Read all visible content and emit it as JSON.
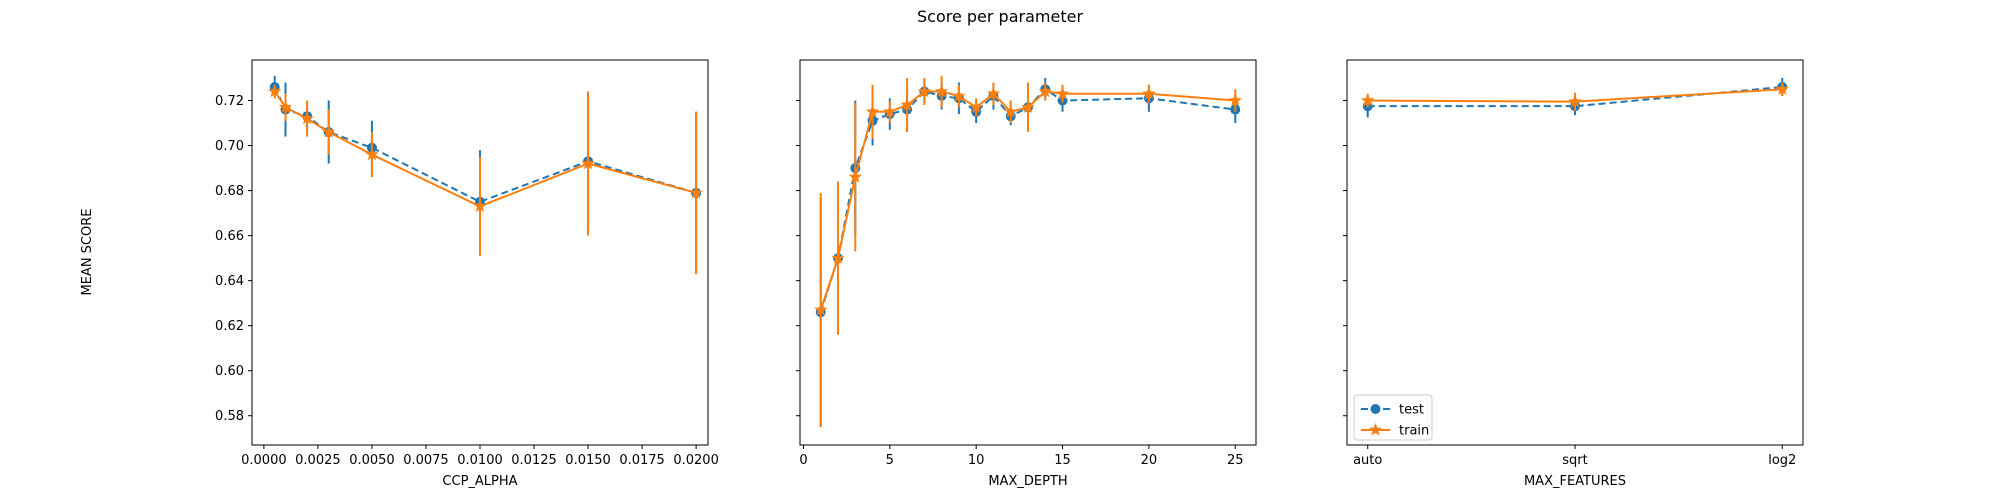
{
  "figure": {
    "title": "Score per parameter",
    "ylabel": "MEAN SCORE"
  },
  "colors": {
    "test": "#1f77b4",
    "train": "#ff7f0e",
    "axis": "#000000"
  },
  "legend": {
    "placement": "lower-left",
    "entries": [
      {
        "label": "test"
      },
      {
        "label": "train"
      }
    ]
  },
  "chart_data": [
    {
      "type": "line",
      "xlabel": "CCP_ALPHA",
      "xscale": "linear",
      "xlim": [
        -0.00055,
        0.02055
      ],
      "ylim": [
        0.567,
        0.738
      ],
      "xticks": [
        0.0,
        0.0025,
        0.005,
        0.0075,
        0.01,
        0.0125,
        0.015,
        0.0175,
        0.02
      ],
      "xtick_labels": [
        "0.0000",
        "0.0025",
        "0.0050",
        "0.0075",
        "0.0100",
        "0.0125",
        "0.0150",
        "0.0175",
        "0.0200"
      ],
      "yticks": [
        0.58,
        0.6,
        0.62,
        0.64,
        0.66,
        0.68,
        0.7,
        0.72
      ],
      "ytick_labels": [
        "0.58",
        "0.60",
        "0.62",
        "0.64",
        "0.66",
        "0.68",
        "0.70",
        "0.72"
      ],
      "x": [
        0.0005,
        0.001,
        0.002,
        0.003,
        0.005,
        0.01,
        0.015,
        0.02
      ],
      "series": [
        {
          "name": "test",
          "marker": "circle",
          "linestyle": "dashed",
          "values": [
            0.726,
            0.716,
            0.713,
            0.706,
            0.699,
            0.675,
            0.693,
            0.679
          ],
          "err": [
            0.005,
            0.012,
            0.006,
            0.014,
            0.012,
            0.023,
            0.031,
            0.036
          ]
        },
        {
          "name": "train",
          "marker": "star",
          "linestyle": "solid",
          "values": [
            0.724,
            0.717,
            0.712,
            0.706,
            0.696,
            0.673,
            0.692,
            0.679
          ],
          "err": [
            0.003,
            0.006,
            0.008,
            0.01,
            0.01,
            0.022,
            0.032,
            0.036
          ]
        }
      ]
    },
    {
      "type": "line",
      "xlabel": "MAX_DEPTH",
      "xscale": "linear",
      "xlim": [
        -0.2,
        26.2
      ],
      "ylim": [
        0.567,
        0.738
      ],
      "xticks": [
        0,
        5,
        10,
        15,
        20,
        25
      ],
      "xtick_labels": [
        "0",
        "5",
        "10",
        "15",
        "20",
        "25"
      ],
      "yticks": [
        0.58,
        0.6,
        0.62,
        0.64,
        0.66,
        0.68,
        0.7,
        0.72
      ],
      "ytick_labels": [
        "",
        "",
        "",
        "",
        "",
        "",
        "",
        ""
      ],
      "x": [
        1,
        2,
        3,
        4,
        5,
        6,
        7,
        8,
        9,
        10,
        11,
        12,
        13,
        14,
        15,
        20,
        25
      ],
      "series": [
        {
          "name": "test",
          "marker": "circle",
          "linestyle": "dashed",
          "values": [
            0.626,
            0.65,
            0.69,
            0.711,
            0.714,
            0.716,
            0.724,
            0.722,
            0.721,
            0.715,
            0.722,
            0.713,
            0.717,
            0.725,
            0.72,
            0.721,
            0.716
          ],
          "err": [
            0.051,
            0.034,
            0.03,
            0.011,
            0.007,
            0.01,
            0.005,
            0.006,
            0.007,
            0.005,
            0.006,
            0.004,
            0.006,
            0.005,
            0.005,
            0.006,
            0.006
          ]
        },
        {
          "name": "train",
          "marker": "star",
          "linestyle": "solid",
          "values": [
            0.627,
            0.65,
            0.686,
            0.715,
            0.715,
            0.718,
            0.724,
            0.724,
            0.722,
            0.717,
            0.723,
            0.715,
            0.717,
            0.724,
            0.723,
            0.723,
            0.72
          ],
          "err": [
            0.052,
            0.034,
            0.033,
            0.012,
            0.005,
            0.012,
            0.006,
            0.007,
            0.005,
            0.004,
            0.005,
            0.005,
            0.011,
            0.004,
            0.004,
            0.004,
            0.005
          ]
        }
      ]
    },
    {
      "type": "line",
      "xlabel": "MAX_FEATURES",
      "xscale": "categorical",
      "categories": [
        "auto",
        "sqrt",
        "log2"
      ],
      "xlim": [
        -0.1,
        2.1
      ],
      "ylim": [
        0.567,
        0.738
      ],
      "yticks": [
        0.58,
        0.6,
        0.62,
        0.64,
        0.66,
        0.68,
        0.7,
        0.72
      ],
      "ytick_labels": [
        "",
        "",
        "",
        "",
        "",
        "",
        "",
        ""
      ],
      "series": [
        {
          "name": "test",
          "marker": "circle",
          "linestyle": "dashed",
          "values": [
            0.7175,
            0.7175,
            0.726
          ],
          "err": [
            0.005,
            0.004,
            0.004
          ]
        },
        {
          "name": "train",
          "marker": "star",
          "linestyle": "solid",
          "values": [
            0.72,
            0.7195,
            0.725
          ],
          "err": [
            0.003,
            0.004,
            0.003
          ]
        }
      ]
    }
  ]
}
